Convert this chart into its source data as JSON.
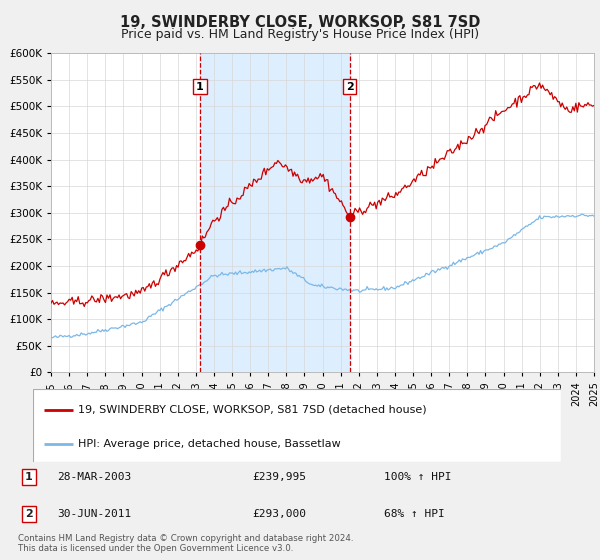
{
  "title": "19, SWINDERBY CLOSE, WORKSOP, S81 7SD",
  "subtitle": "Price paid vs. HM Land Registry's House Price Index (HPI)",
  "legend_line1": "19, SWINDERBY CLOSE, WORKSOP, S81 7SD (detached house)",
  "legend_line2": "HPI: Average price, detached house, Bassetlaw",
  "red_color": "#cc0000",
  "blue_color": "#7bb8e8",
  "shaded_color": "#ddeeff",
  "marker1_date": "28-MAR-2003",
  "marker1_price": 239995,
  "marker1_hpi_pct": "100%",
  "marker1_year": 2003.23,
  "marker2_date": "30-JUN-2011",
  "marker2_price": 293000,
  "marker2_hpi_pct": "68%",
  "marker2_year": 2011.5,
  "ylabel_ticks": [
    0,
    50000,
    100000,
    150000,
    200000,
    250000,
    300000,
    350000,
    400000,
    450000,
    500000,
    550000,
    600000
  ],
  "ylabel_labels": [
    "£0",
    "£50K",
    "£100K",
    "£150K",
    "£200K",
    "£250K",
    "£300K",
    "£350K",
    "£400K",
    "£450K",
    "£500K",
    "£550K",
    "£600K"
  ],
  "xmin": 1995,
  "xmax": 2025,
  "ymin": 0,
  "ymax": 600000,
  "copyright_text": "Contains HM Land Registry data © Crown copyright and database right 2024.\nThis data is licensed under the Open Government Licence v3.0.",
  "background_color": "#f0f0f0",
  "plot_background_color": "#ffffff"
}
